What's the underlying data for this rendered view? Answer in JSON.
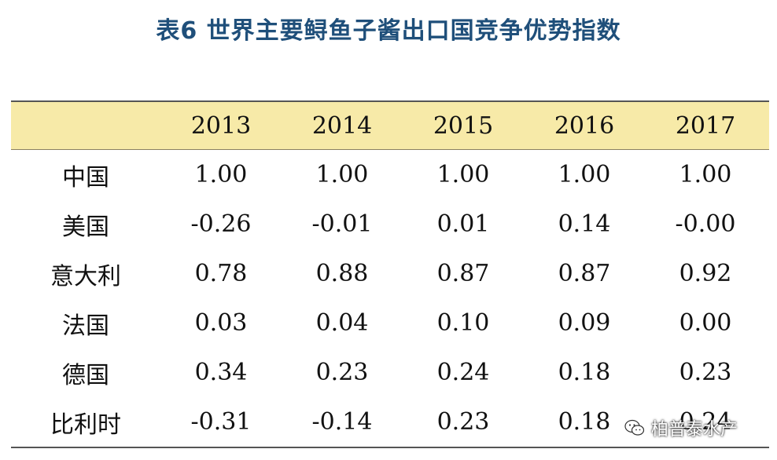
{
  "title": "表6  世界主要鲟鱼子酱出口国竞争优势指数",
  "table": {
    "header_blank": "",
    "years": [
      "2013",
      "2014",
      "2015",
      "2016",
      "2017"
    ],
    "rows": [
      {
        "country": "中国",
        "values": [
          "1.00",
          "1.00",
          "1.00",
          "1.00",
          "1.00"
        ]
      },
      {
        "country": "美国",
        "values": [
          "-0.26",
          "-0.01",
          "0.01",
          "0.14",
          "-0.00"
        ]
      },
      {
        "country": "意大利",
        "values": [
          "0.78",
          "0.88",
          "0.87",
          "0.87",
          "0.92"
        ]
      },
      {
        "country": "法国",
        "values": [
          "0.03",
          "0.04",
          "0.10",
          "0.09",
          "0.00"
        ]
      },
      {
        "country": "德国",
        "values": [
          "0.34",
          "0.23",
          "0.24",
          "0.18",
          "0.23"
        ]
      },
      {
        "country": "比利时",
        "values": [
          "-0.31",
          "-0.14",
          "0.23",
          "0.18",
          "0.24"
        ]
      }
    ]
  },
  "watermark": {
    "text": "柏普泰水产",
    "icon": "wechat-icon"
  }
}
